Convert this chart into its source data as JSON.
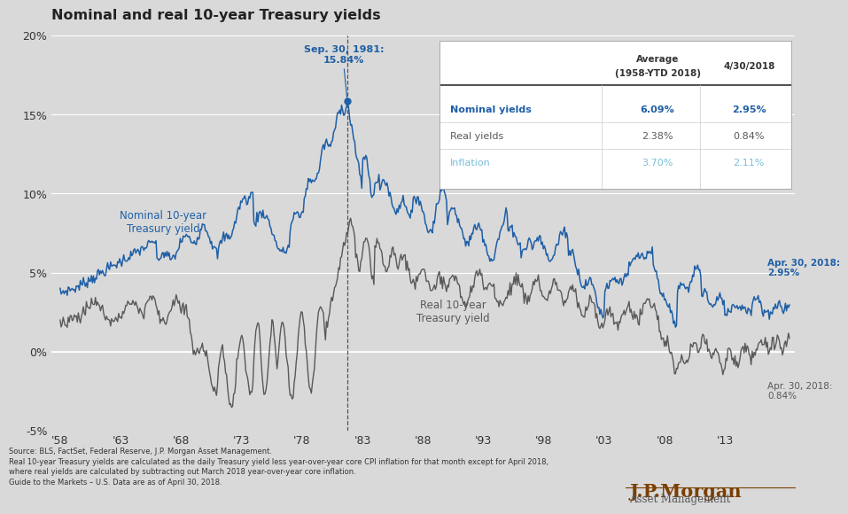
{
  "title": "Nominal and real 10-year Treasury yields",
  "background_color": "#d9d9d9",
  "plot_bg_color": "#d9d9d9",
  "nominal_color": "#1f5fa6",
  "real_color": "#595959",
  "ylim": [
    -5,
    20
  ],
  "yticks": [
    -5,
    0,
    5,
    10,
    15,
    20
  ],
  "ytick_labels": [
    "-5%",
    "0%",
    "5%",
    "10%",
    "15%",
    "20%"
  ],
  "xtick_years": [
    1958,
    1963,
    1968,
    1973,
    1978,
    1983,
    1988,
    1993,
    1998,
    2003,
    2008,
    2013
  ],
  "xtick_labels": [
    "'58",
    "'63",
    "'68",
    "'73",
    "'78",
    "'83",
    "'88",
    "'93",
    "'98",
    "'03",
    "'08",
    "'13"
  ],
  "xlim_left": 1957.3,
  "xlim_right": 2018.8,
  "annotation_peak_label": "Sep. 30, 1981:\n15.84%",
  "annotation_nominal_label": "Apr. 30, 2018:\n2.95%",
  "annotation_real_label": "Apr. 30, 2018:\n0.84%",
  "label_nominal_text": "Nominal 10-year\nTreasury yield",
  "label_real_text": "Real 10-year\nTreasury yield",
  "dashed_line_x": 1981.75,
  "source_text": "Source: BLS, FactSet, Federal Reserve, J.P. Morgan Asset Management.\nReal 10-year Treasury yields are calculated as the daily Treasury yield less year-over-year core CPI inflation for that month except for April 2018,\nwhere real yields are calculated by subtracting out March 2018 year-over-year core inflation.\nGuide to the Markets – U.S. Data are as of April 30, 2018.",
  "table_rows": [
    [
      "Nominal yields",
      "6.09%",
      "2.95%"
    ],
    [
      "Real yields",
      "2.38%",
      "0.84%"
    ],
    [
      "Inflation",
      "3.70%",
      "2.11%"
    ]
  ],
  "table_row_colors": [
    "#1f5fa6",
    "#595959",
    "#7abfda"
  ],
  "table_row_bold": [
    true,
    false,
    false
  ]
}
